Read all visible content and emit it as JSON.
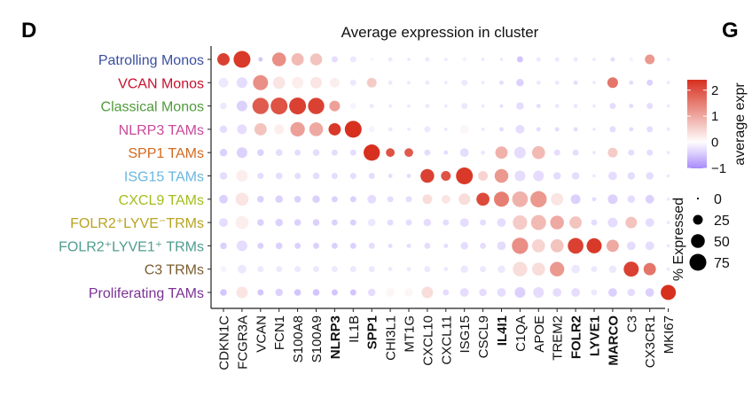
{
  "panel_letters": {
    "left": "D",
    "right": "G"
  },
  "chart_data": {
    "type": "dotplot",
    "title": "Average expression in cluster",
    "genes": [
      {
        "label": "CDKN1C",
        "bold": false
      },
      {
        "label": "FCGR3A",
        "bold": false
      },
      {
        "label": "VCAN",
        "bold": false
      },
      {
        "label": "FCN1",
        "bold": false
      },
      {
        "label": "S100A8",
        "bold": false
      },
      {
        "label": "S100A9",
        "bold": false
      },
      {
        "label": "NLRP3",
        "bold": true
      },
      {
        "label": "IL1B",
        "bold": false
      },
      {
        "label": "SPP1",
        "bold": true
      },
      {
        "label": "CHI3L1",
        "bold": false
      },
      {
        "label": "MT1G",
        "bold": false
      },
      {
        "label": "CXCL10",
        "bold": false
      },
      {
        "label": "CXCL11",
        "bold": false
      },
      {
        "label": "ISG15",
        "bold": false
      },
      {
        "label": "CSCL9",
        "bold": false
      },
      {
        "label": "IL4I1",
        "bold": true
      },
      {
        "label": "C1QA",
        "bold": false
      },
      {
        "label": "APOE",
        "bold": false
      },
      {
        "label": "TREM2",
        "bold": false
      },
      {
        "label": "FOLR2",
        "bold": true
      },
      {
        "label": "LYVE1",
        "bold": true
      },
      {
        "label": "MARCO",
        "bold": true
      },
      {
        "label": "C3",
        "bold": false
      },
      {
        "label": "CX3CR1",
        "bold": false
      },
      {
        "label": "MKI67",
        "bold": false
      }
    ],
    "clusters": [
      {
        "label": "Patrolling Monos",
        "color": "#3b4fa0"
      },
      {
        "label": "VCAN Monos",
        "color": "#c8102e"
      },
      {
        "label": "Classical Monos",
        "color": "#4f9a3b"
      },
      {
        "label": "NLRP3 TAMs",
        "color": "#c9499a"
      },
      {
        "label": "SPP1 TAMs",
        "color": "#d2691e"
      },
      {
        "label": "ISG15 TAMs",
        "color": "#6ab7e0"
      },
      {
        "label": "CXCL9 TAMs",
        "color": "#a3bd1d"
      },
      {
        "label": "FOLR2⁺LYVE⁻TRMs",
        "color": "#b8a320"
      },
      {
        "label": "FOLR2⁺LYVE1⁺ TRMs",
        "color": "#4f9c8e"
      },
      {
        "label": "C3 TRMs",
        "color": "#7a5c2e"
      },
      {
        "label": "Proliferating TAMs",
        "color": "#7b3294"
      }
    ],
    "expression": [
      [
        2.2,
        2.3,
        -0.5,
        1.3,
        0.8,
        0.7,
        -0.3,
        -0.2,
        -0.1,
        -0.2,
        -0.2,
        -0.2,
        -0.2,
        -0.1,
        -0.2,
        -0.2,
        -0.5,
        -0.2,
        -0.2,
        -0.2,
        -0.2,
        -0.3,
        -0.1,
        1.2,
        -0.2
      ],
      [
        -0.2,
        -0.3,
        1.3,
        0.3,
        0.2,
        0.3,
        0.2,
        -0.2,
        0.6,
        -0.2,
        -0.2,
        -0.2,
        -0.2,
        -0.2,
        -0.2,
        -0.3,
        -0.4,
        -0.2,
        -0.2,
        -0.3,
        -0.2,
        1.6,
        -0.3,
        -0.4,
        -0.2
      ],
      [
        -0.2,
        -0.4,
        1.9,
        2.0,
        2.2,
        2.2,
        1.1,
        -0.1,
        -0.2,
        -0.2,
        -0.2,
        -0.2,
        -0.2,
        -0.2,
        -0.2,
        -0.3,
        -0.3,
        -0.3,
        -0.2,
        -0.2,
        -0.2,
        -0.3,
        -0.3,
        -0.3,
        -0.2
      ],
      [
        -0.3,
        -0.3,
        0.7,
        0.2,
        1.1,
        1.0,
        2.3,
        2.4,
        -0.1,
        -0.2,
        -0.2,
        -0.2,
        -0.2,
        0.1,
        -0.2,
        -0.3,
        -0.3,
        -0.3,
        -0.3,
        -0.3,
        -0.2,
        -0.3,
        -0.3,
        -0.3,
        -0.2
      ],
      [
        -0.4,
        -0.4,
        -0.4,
        -0.3,
        -0.3,
        -0.3,
        -0.3,
        -0.3,
        2.4,
        2.0,
        1.9,
        -0.3,
        -0.3,
        -0.3,
        -0.2,
        0.9,
        -0.3,
        0.8,
        -0.3,
        -0.3,
        -0.2,
        0.6,
        -0.3,
        -0.3,
        -0.2
      ],
      [
        -0.3,
        0.2,
        -0.3,
        -0.3,
        -0.3,
        -0.3,
        -0.3,
        -0.3,
        -0.3,
        -0.3,
        -0.3,
        2.2,
        2.0,
        2.3,
        0.5,
        1.2,
        -0.3,
        -0.3,
        -0.3,
        -0.3,
        -0.2,
        -0.3,
        -0.3,
        -0.3,
        -0.2
      ],
      [
        -0.4,
        0.3,
        -0.4,
        -0.4,
        -0.4,
        -0.4,
        -0.4,
        -0.4,
        -0.3,
        -0.3,
        -0.3,
        0.4,
        0.3,
        0.4,
        2.1,
        1.5,
        0.9,
        1.2,
        0.3,
        -0.4,
        -0.3,
        -0.4,
        -0.3,
        -0.4,
        -0.2
      ],
      [
        -0.3,
        0.2,
        -0.4,
        -0.4,
        -0.4,
        -0.4,
        -0.4,
        -0.4,
        -0.2,
        -0.3,
        -0.3,
        -0.3,
        -0.3,
        -0.3,
        -0.3,
        -0.3,
        0.6,
        0.8,
        1.0,
        0.7,
        -0.3,
        -0.3,
        0.7,
        -0.3,
        -0.2
      ],
      [
        -0.4,
        -0.3,
        -0.4,
        -0.4,
        -0.4,
        -0.4,
        -0.4,
        -0.4,
        -0.3,
        -0.3,
        -0.3,
        -0.3,
        -0.3,
        -0.3,
        -0.3,
        -0.3,
        1.3,
        0.5,
        0.7,
        2.2,
        2.3,
        1.0,
        -0.3,
        -0.3,
        -0.2
      ],
      [
        -0.1,
        -0.2,
        -0.2,
        -0.2,
        -0.2,
        -0.2,
        -0.2,
        -0.2,
        -0.2,
        -0.2,
        -0.2,
        -0.2,
        -0.2,
        -0.2,
        -0.2,
        -0.2,
        0.4,
        0.4,
        1.2,
        -0.2,
        -0.2,
        -0.2,
        2.2,
        1.6,
        -0.2
      ],
      [
        -0.5,
        0.3,
        -0.5,
        -0.4,
        -0.5,
        -0.5,
        -0.5,
        -0.5,
        -0.3,
        0.1,
        0.1,
        0.4,
        -0.3,
        -0.3,
        -0.3,
        -0.3,
        -0.4,
        -0.3,
        -0.3,
        -0.3,
        -0.2,
        -0.4,
        -0.3,
        -0.4,
        2.4
      ]
    ],
    "pct_expressed": [
      [
        40,
        75,
        5,
        50,
        40,
        38,
        10,
        10,
        3,
        5,
        3,
        5,
        3,
        5,
        3,
        3,
        10,
        5,
        5,
        5,
        3,
        5,
        5,
        25,
        3
      ],
      [
        25,
        30,
        60,
        40,
        35,
        35,
        25,
        10,
        25,
        5,
        3,
        5,
        3,
        10,
        3,
        5,
        15,
        5,
        5,
        5,
        3,
        30,
        5,
        10,
        3
      ],
      [
        12,
        30,
        70,
        75,
        75,
        70,
        30,
        10,
        5,
        3,
        3,
        5,
        3,
        10,
        3,
        3,
        15,
        5,
        5,
        5,
        3,
        10,
        5,
        10,
        3
      ],
      [
        15,
        25,
        40,
        25,
        55,
        50,
        40,
        75,
        10,
        5,
        3,
        10,
        3,
        20,
        3,
        5,
        20,
        5,
        5,
        5,
        3,
        10,
        5,
        10,
        3
      ],
      [
        15,
        30,
        12,
        12,
        10,
        12,
        10,
        10,
        70,
        20,
        20,
        10,
        5,
        20,
        5,
        40,
        35,
        45,
        10,
        10,
        3,
        25,
        10,
        10,
        3
      ],
      [
        15,
        35,
        10,
        12,
        10,
        12,
        10,
        10,
        10,
        5,
        5,
        50,
        25,
        75,
        25,
        50,
        30,
        30,
        15,
        15,
        3,
        20,
        15,
        15,
        3
      ],
      [
        20,
        45,
        12,
        15,
        12,
        15,
        10,
        10,
        20,
        10,
        10,
        25,
        20,
        35,
        45,
        60,
        65,
        70,
        40,
        25,
        5,
        25,
        15,
        20,
        3
      ],
      [
        20,
        45,
        12,
        15,
        12,
        12,
        10,
        10,
        15,
        10,
        10,
        15,
        10,
        20,
        10,
        20,
        55,
        60,
        50,
        40,
        10,
        25,
        35,
        20,
        3
      ],
      [
        12,
        30,
        10,
        12,
        10,
        10,
        10,
        10,
        10,
        5,
        5,
        10,
        5,
        15,
        10,
        20,
        70,
        45,
        45,
        65,
        60,
        40,
        20,
        20,
        3
      ],
      [
        10,
        20,
        10,
        10,
        10,
        10,
        10,
        10,
        10,
        5,
        5,
        10,
        5,
        15,
        10,
        15,
        55,
        45,
        55,
        20,
        10,
        15,
        60,
        40,
        3
      ],
      [
        12,
        35,
        10,
        15,
        12,
        12,
        10,
        10,
        15,
        20,
        20,
        35,
        10,
        20,
        15,
        20,
        30,
        30,
        20,
        20,
        10,
        20,
        15,
        20,
        60
      ]
    ],
    "color_legend": {
      "title": "average expr",
      "min": -1,
      "max": 2.4,
      "ticks": [
        2,
        1,
        0,
        -1
      ],
      "low_color": "#a78bfa",
      "mid_color": "#ffffff",
      "high_color": "#d7301f"
    },
    "size_legend": {
      "title": "% Expressed",
      "values": [
        0,
        25,
        50,
        75
      ]
    }
  }
}
